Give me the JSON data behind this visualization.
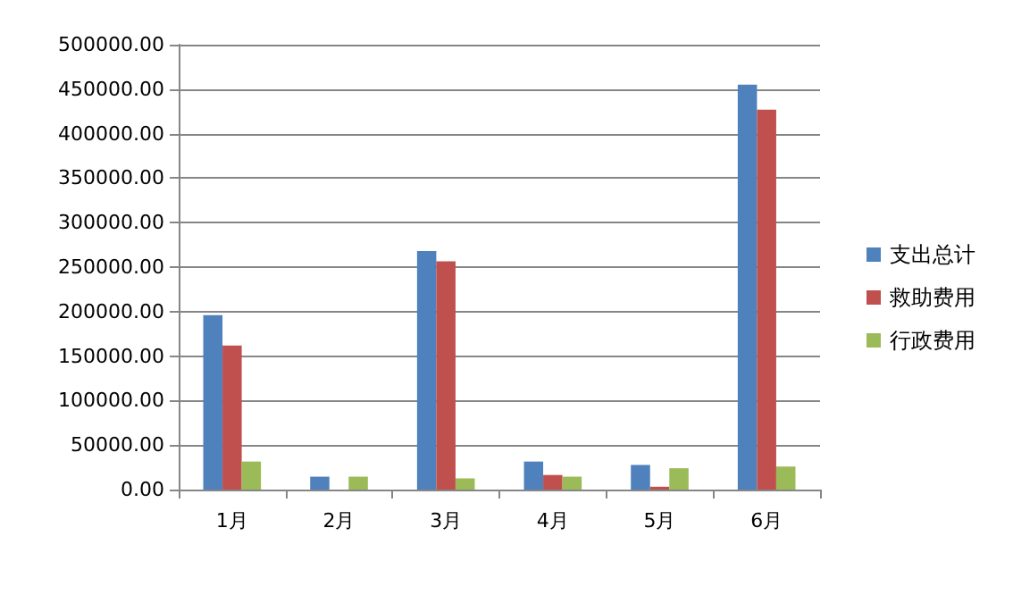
{
  "chart_data": {
    "type": "bar",
    "categories": [
      "1月",
      "2月",
      "3月",
      "4月",
      "5月",
      "6月"
    ],
    "series": [
      {
        "name": "支出总计",
        "color": "#4f81bd",
        "values": [
          196000,
          14500,
          268000,
          31500,
          27700,
          455000
        ]
      },
      {
        "name": "救助费用",
        "color": "#c0504d",
        "values": [
          162000,
          0,
          256600,
          16400,
          3200,
          427000
        ]
      },
      {
        "name": "行政费用",
        "color": "#9bbb59",
        "values": [
          31500,
          14500,
          12600,
          14500,
          24000,
          25900
        ]
      }
    ],
    "ylim": [
      0,
      500000
    ],
    "yticks": [
      {
        "value": 0,
        "label": "0.00"
      },
      {
        "value": 50000,
        "label": "50000.00"
      },
      {
        "value": 100000,
        "label": "100000.00"
      },
      {
        "value": 150000,
        "label": "150000.00"
      },
      {
        "value": 200000,
        "label": "200000.00"
      },
      {
        "value": 250000,
        "label": "250000.00"
      },
      {
        "value": 300000,
        "label": "300000.00"
      },
      {
        "value": 350000,
        "label": "350000.00"
      },
      {
        "value": 400000,
        "label": "400000.00"
      },
      {
        "value": 450000,
        "label": "450000.00"
      },
      {
        "value": 500000,
        "label": "500000.00"
      }
    ],
    "grid": "y",
    "legend": "right"
  }
}
